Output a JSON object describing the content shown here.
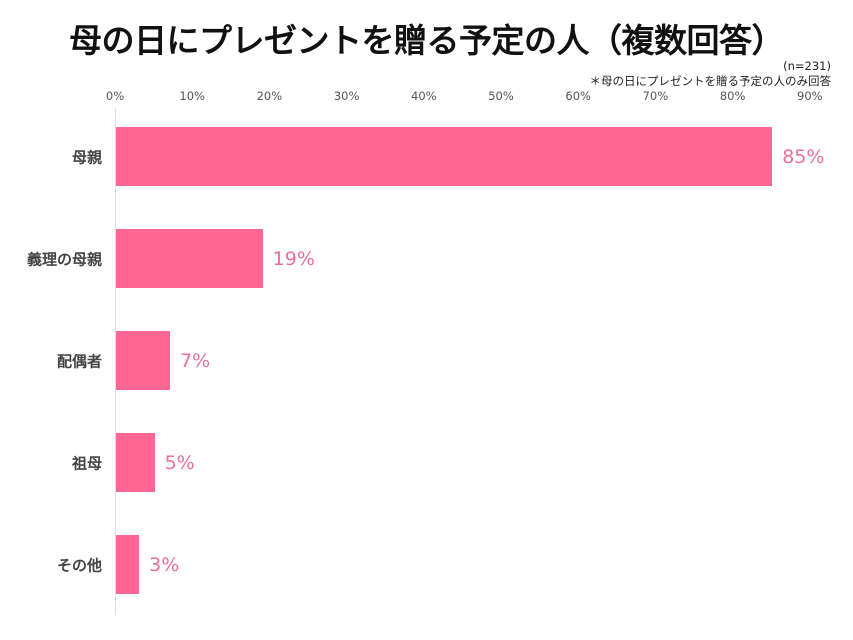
{
  "title": "母の日にプレゼントを贈る予定の人（複数回答）",
  "sample_note": "(n=231)",
  "respondent_note": "＊母の日にプレゼントを贈る予定の人のみ回答",
  "colors": {
    "bar": "#ff6694",
    "value_label": "#e8709a",
    "axis": "#dddde3"
  },
  "axis": {
    "ticks": [
      "0%",
      "10%",
      "20%",
      "30%",
      "40%",
      "50%",
      "60%",
      "70%",
      "80%",
      "90%"
    ]
  },
  "bars": [
    {
      "label": "母親",
      "value": 85,
      "display": "85%"
    },
    {
      "label": "義理の母親",
      "value": 19,
      "display": "19%"
    },
    {
      "label": "配偶者",
      "value": 7,
      "display": "7%"
    },
    {
      "label": "祖母",
      "value": 5,
      "display": "5%"
    },
    {
      "label": "その他",
      "value": 3,
      "display": "3%"
    }
  ],
  "chart_data": {
    "type": "bar",
    "orientation": "horizontal",
    "title": "母の日にプレゼントを贈る予定の人（複数回答）",
    "subtitle": "(n=231) ＊母の日にプレゼントを贈る予定の人のみ回答",
    "categories": [
      "母親",
      "義理の母親",
      "配偶者",
      "祖母",
      "その他"
    ],
    "values": [
      85,
      19,
      7,
      5,
      3
    ],
    "unit": "%",
    "xlabel": "",
    "ylabel": "",
    "xlim": [
      0,
      90
    ],
    "xticks": [
      0,
      10,
      20,
      30,
      40,
      50,
      60,
      70,
      80,
      90
    ],
    "tick_position": "top",
    "grid": false,
    "legend": null,
    "data_labels": true
  }
}
